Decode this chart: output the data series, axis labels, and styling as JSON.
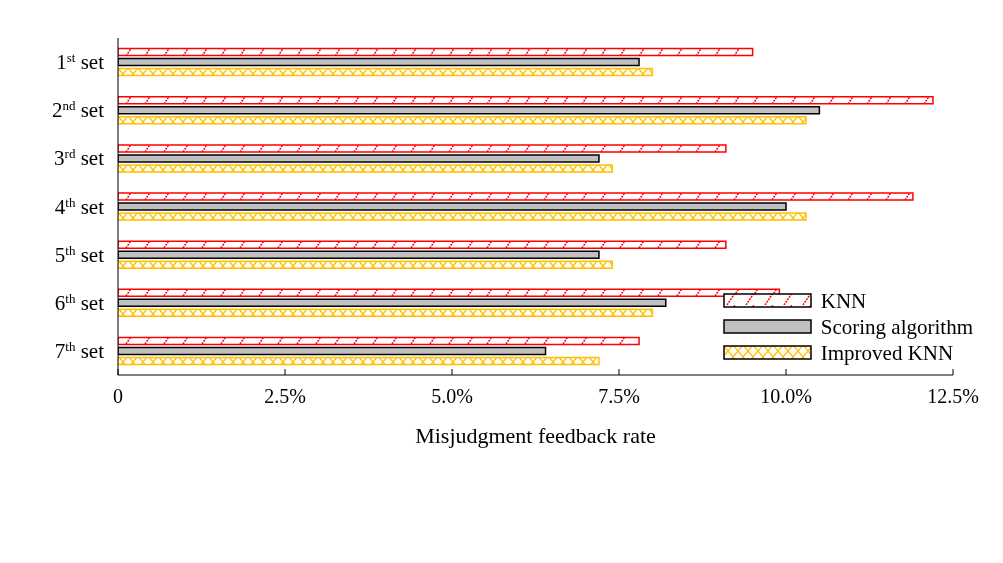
{
  "chart_data": {
    "type": "bar",
    "orientation": "horizontal",
    "xlabel": "Misjudgment feedback rate",
    "categories": [
      "1$^{st}$ set",
      "2$^{nd}$ set",
      "3$^{rd}$ set",
      "4$^{th}$ set",
      "5$^{th}$ set",
      "6$^{th}$ set",
      "7$^{th}$ set"
    ],
    "series": [
      {
        "name": "KNN",
        "color": "#ff0000",
        "values": [
          9.5,
          12.2,
          9.1,
          11.9,
          9.1,
          9.9,
          7.8
        ]
      },
      {
        "name": "Scoring algorithm",
        "color": "#c0c0c0",
        "values": [
          7.8,
          10.5,
          7.2,
          10.0,
          7.2,
          8.2,
          6.4
        ]
      },
      {
        "name": "Improved KNN",
        "color": "#ffc000",
        "values": [
          8.0,
          10.3,
          7.4,
          10.3,
          7.4,
          8.0,
          7.2
        ]
      }
    ],
    "xlim": [
      0,
      12.5
    ],
    "xticks": [
      0,
      {
        "value": 2.5,
        "label": "2.5%"
      },
      {
        "value": 5,
        "label": "5.0%"
      },
      {
        "value": 7.5,
        "label": "7.5%"
      },
      {
        "value": 10,
        "label": "10.0%"
      },
      {
        "value": 12.5,
        "label": "12.5%"
      }
    ],
    "legend": "bottom right"
  }
}
